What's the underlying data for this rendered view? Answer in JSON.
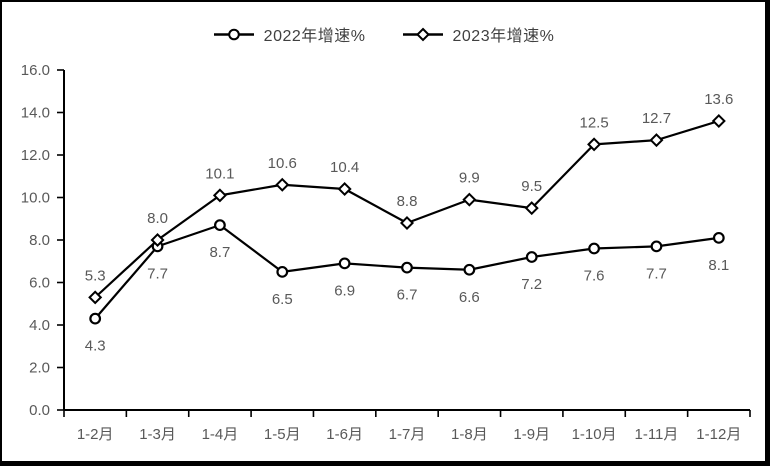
{
  "chart_data": {
    "type": "line",
    "categories": [
      "1-2月",
      "1-3月",
      "1-4月",
      "1-5月",
      "1-6月",
      "1-7月",
      "1-8月",
      "1-9月",
      "1-10月",
      "1-11月",
      "1-12月"
    ],
    "series": [
      {
        "name": "2022年增速%",
        "marker": "circle",
        "label_position": "below",
        "values": [
          4.3,
          7.7,
          8.7,
          6.5,
          6.9,
          6.7,
          6.6,
          7.2,
          7.6,
          7.7,
          8.1
        ]
      },
      {
        "name": "2023年增速%",
        "marker": "diamond",
        "label_position": "above",
        "values": [
          5.3,
          8.0,
          10.1,
          10.6,
          10.4,
          8.8,
          9.9,
          9.5,
          12.5,
          12.7,
          13.6
        ]
      }
    ],
    "title": "",
    "xlabel": "",
    "ylabel": "",
    "ylim": [
      0,
      16
    ],
    "ytick_step": 2,
    "ytick_labels": [
      "0.0",
      "2.0",
      "4.0",
      "6.0",
      "8.0",
      "10.0",
      "12.0",
      "14.0",
      "16.0"
    ],
    "grid": false,
    "legend_position": "top",
    "data_labels_shown": true,
    "colors": {
      "line": "#000000",
      "marker_fill": "#ffffff",
      "axis": "#000000",
      "tick_label": "#595959",
      "data_label": "#595959",
      "legend_text": "#404040",
      "frame_border": "#000000",
      "background": "#ffffff"
    }
  }
}
